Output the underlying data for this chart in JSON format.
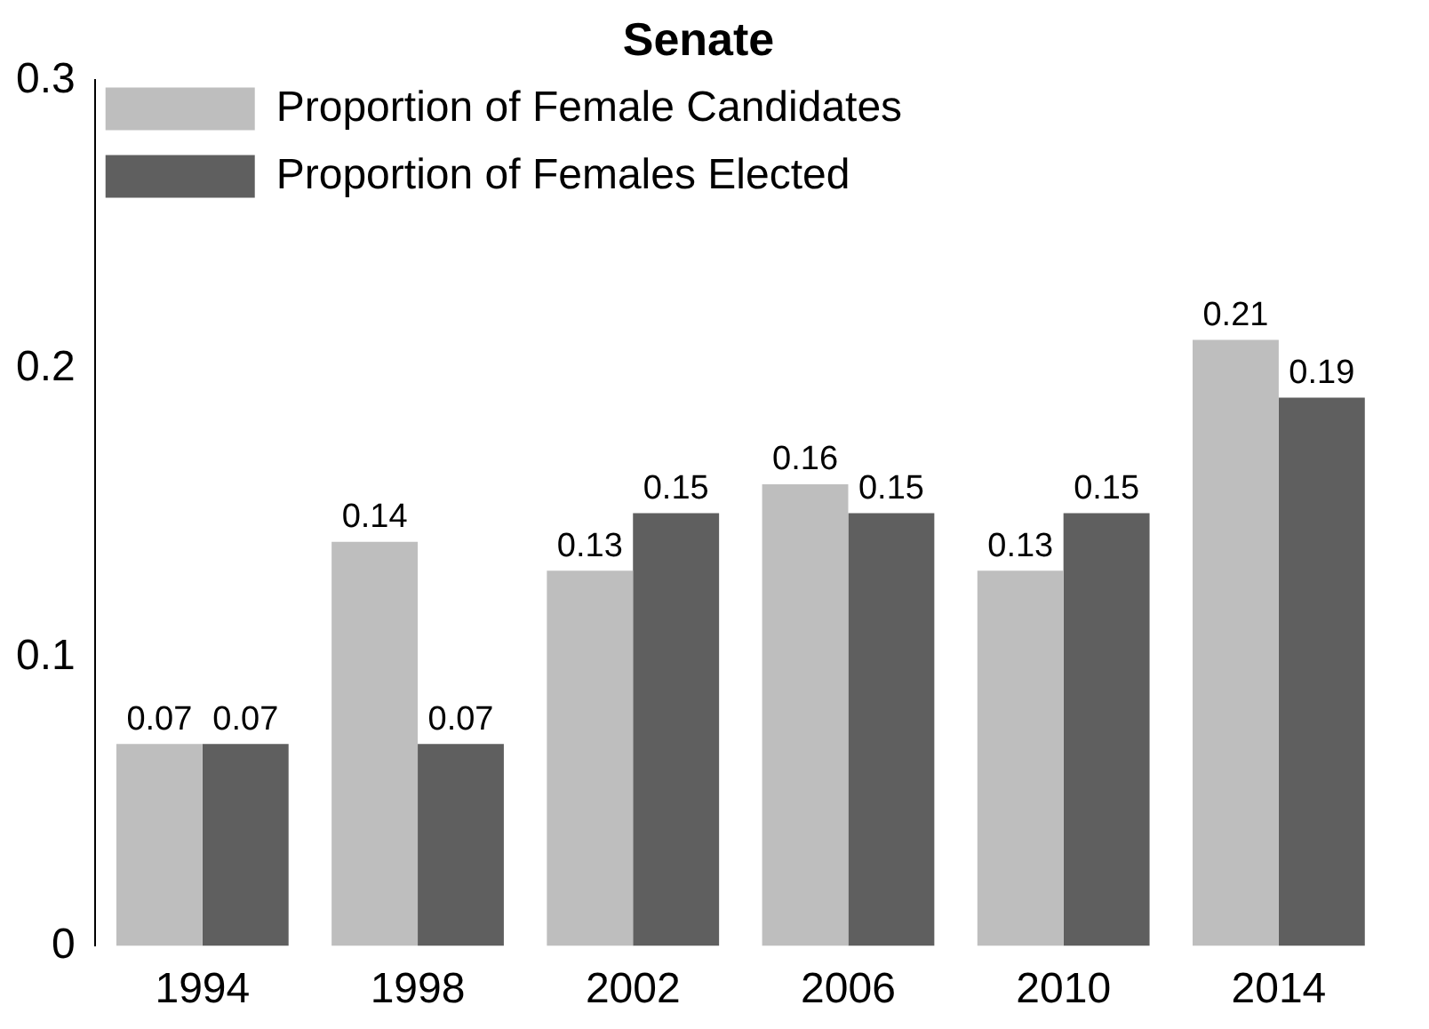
{
  "chart_data": {
    "type": "bar",
    "title": "Senate",
    "categories": [
      "1994",
      "1998",
      "2002",
      "2006",
      "2010",
      "2014"
    ],
    "series": [
      {
        "name": "Proportion of Female Candidates",
        "color": "#bebebe",
        "values": [
          0.07,
          0.14,
          0.13,
          0.16,
          0.13,
          0.21
        ]
      },
      {
        "name": "Proportion of Females Elected",
        "color": "#5f5f5f",
        "values": [
          0.07,
          0.07,
          0.15,
          0.15,
          0.15,
          0.19
        ]
      }
    ],
    "ylim": [
      0,
      0.3
    ],
    "yticks": [
      0,
      0.1,
      0.2,
      0.3
    ],
    "grid": false,
    "legend": "top left",
    "data_labels": true
  }
}
